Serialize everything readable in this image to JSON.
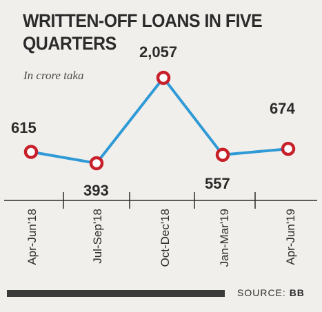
{
  "title": "WRITTEN-OFF LOANS IN FIVE QUARTERS",
  "subtitle": "In crore taka",
  "source": {
    "label": "SOURCE:",
    "value": "BB"
  },
  "colors": {
    "line": "#2f9ad6",
    "marker": "#c8202a",
    "marker_fill": "#ffffff",
    "text": "#2b2b2b"
  },
  "chart_data": {
    "type": "line",
    "title": "WRITTEN-OFF LOANS IN FIVE QUARTERS",
    "subtitle": "In crore taka",
    "categories": [
      "Apr-Jun'18",
      "Jul-Sep'18",
      "Oct-Dec'18",
      "Jan-Mar'19",
      "Apr-Jun'19"
    ],
    "values": [
      615,
      393,
      2057,
      557,
      674
    ],
    "data_labels": [
      "615",
      "393",
      "2,057",
      "557",
      "674"
    ],
    "xlabel": "",
    "ylabel": "",
    "grid": false
  }
}
